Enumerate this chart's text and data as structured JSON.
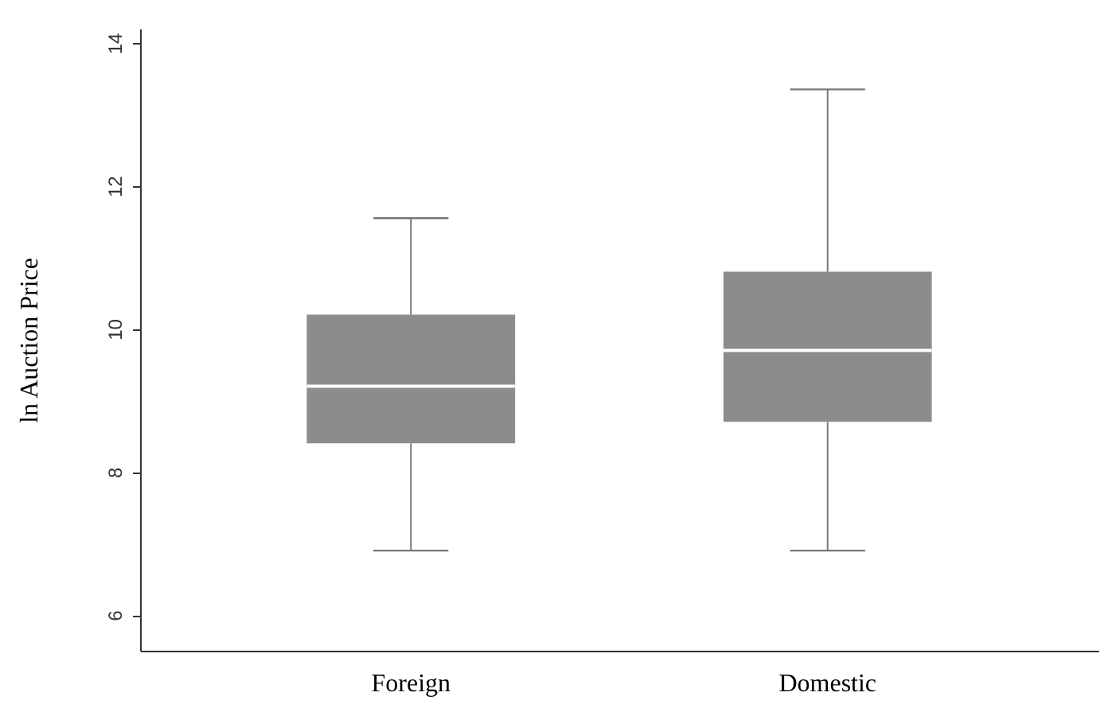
{
  "chart_data": {
    "type": "box",
    "ylabel": "ln Auction Price",
    "categories": [
      "Foreign",
      "Domestic"
    ],
    "boxes": [
      {
        "low": 6.9,
        "q1": 8.4,
        "median": 9.2,
        "q3": 10.2,
        "high": 11.55
      },
      {
        "low": 6.9,
        "q1": 8.7,
        "median": 9.7,
        "q3": 10.8,
        "high": 13.35
      }
    ],
    "color": "#8c8c8c",
    "ylim": [
      5.5,
      14.2
    ],
    "yticks": [
      6,
      8,
      10,
      12,
      14
    ],
    "grid": false
  }
}
